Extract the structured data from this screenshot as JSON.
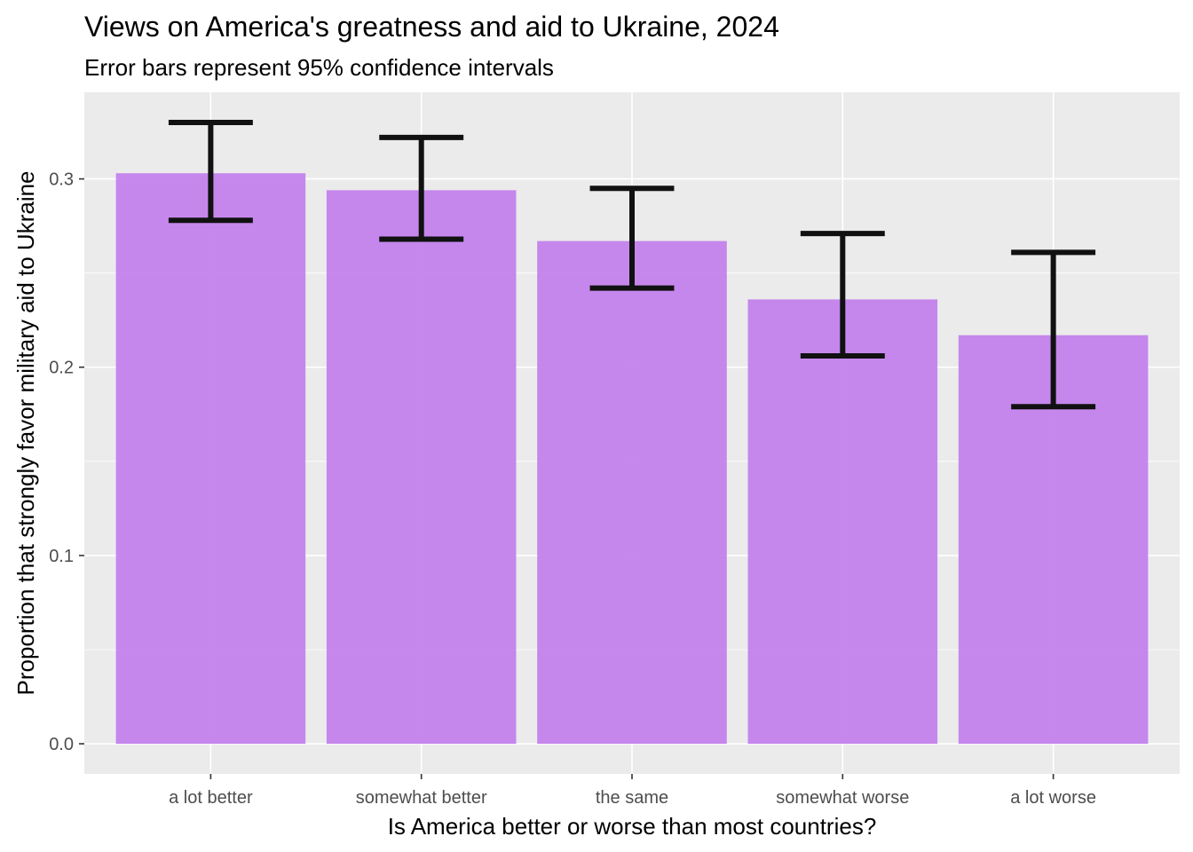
{
  "chart_data": {
    "type": "bar",
    "title": "Views on America's greatness and aid to Ukraine, 2024",
    "subtitle": "Error bars represent 95% confidence intervals",
    "xlabel": "Is America better or worse than most countries?",
    "ylabel": "Proportion that strongly favor military aid to Ukraine",
    "categories": [
      "a lot better",
      "somewhat better",
      "the same",
      "somewhat worse",
      "a lot worse"
    ],
    "values": [
      0.303,
      0.294,
      0.267,
      0.236,
      0.217
    ],
    "ci_lower": [
      0.278,
      0.268,
      0.242,
      0.206,
      0.179
    ],
    "ci_upper": [
      0.33,
      0.322,
      0.295,
      0.271,
      0.261
    ],
    "ylim": [
      -0.016,
      0.346
    ],
    "yticks": [
      0.0,
      0.1,
      0.2,
      0.3
    ],
    "ytick_labels": [
      "0.0",
      "0.1",
      "0.2",
      "0.3"
    ],
    "grid": true,
    "bar_color": "#c382ec",
    "errorbar_color": "#111111",
    "panel_color": "#ebebeb"
  }
}
